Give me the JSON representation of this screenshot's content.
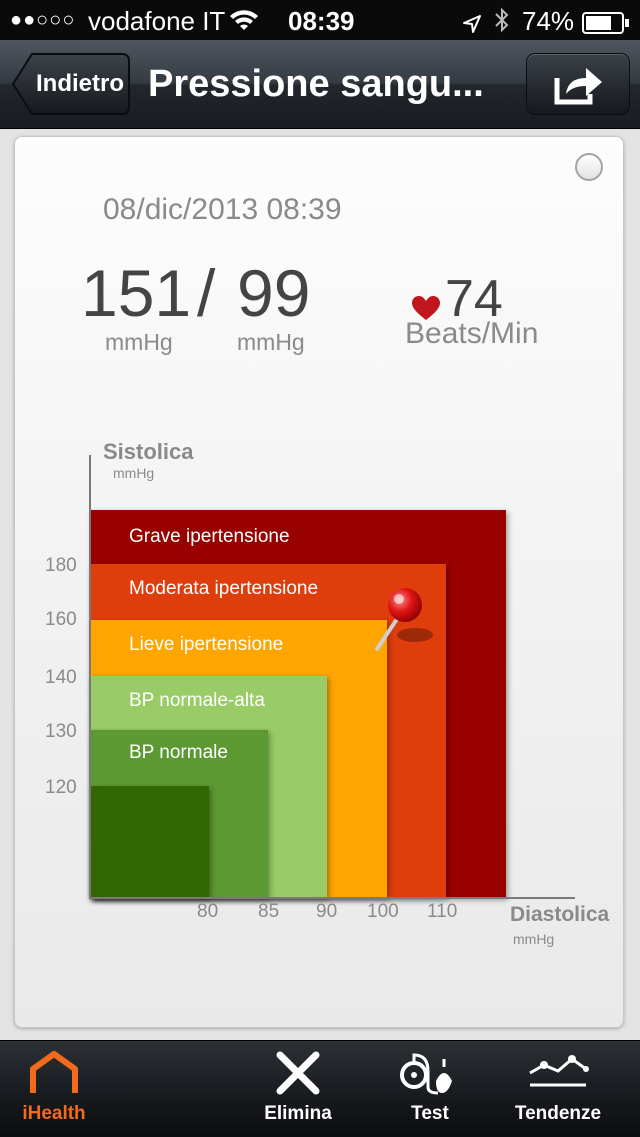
{
  "status_bar": {
    "signal": "●●○○○",
    "carrier": "vodafone IT",
    "time": "08:39",
    "battery_percent": "74%",
    "battery_level": 0.74,
    "icons": [
      "wifi-icon",
      "location-icon",
      "bluetooth-icon",
      "battery-icon"
    ]
  },
  "nav": {
    "back_label": "Indietro",
    "title": "Pressione sangu...",
    "share_icon": "share-icon"
  },
  "reading": {
    "date": "08/dic/2013 08:39",
    "systolic": "151",
    "separator": "/",
    "diastolic": "99",
    "systolic_unit": "mmHg",
    "diastolic_unit": "mmHg",
    "pulse": "74",
    "pulse_unit": "Beats/Min"
  },
  "chart_data": {
    "type": "zone",
    "y_axis_label": "Sistolica",
    "y_axis_unit": "mmHg",
    "x_axis_label": "Diastolica",
    "x_axis_unit": "mmHg",
    "y_ticks": [
      "180",
      "160",
      "140",
      "130",
      "120"
    ],
    "x_ticks": [
      "80",
      "85",
      "90",
      "100",
      "110"
    ],
    "zones": [
      {
        "label": "Grave ipertensione",
        "color": "#990000"
      },
      {
        "label": "Moderata ipertensione",
        "color": "#e03c07"
      },
      {
        "label": "Lieve ipertensione",
        "color": "#ffa500"
      },
      {
        "label": "BP normale-alta",
        "color": "#99cc66"
      },
      {
        "label": "BP normale",
        "color": "#5c9930"
      },
      {
        "label": "",
        "color": "#336600"
      }
    ],
    "marker": {
      "systolic": 151,
      "diastolic": 99
    }
  },
  "tabs": [
    {
      "label": "iHealth",
      "icon": "home-icon",
      "active": true
    },
    {
      "label": "Elimina",
      "icon": "delete-x-icon",
      "active": false
    },
    {
      "label": "Test",
      "icon": "bp-monitor-icon",
      "active": false
    },
    {
      "label": "Tendenze",
      "icon": "trend-icon",
      "active": false
    }
  ],
  "colors": {
    "accent": "#f26a1b",
    "heart": "#c0161d"
  }
}
